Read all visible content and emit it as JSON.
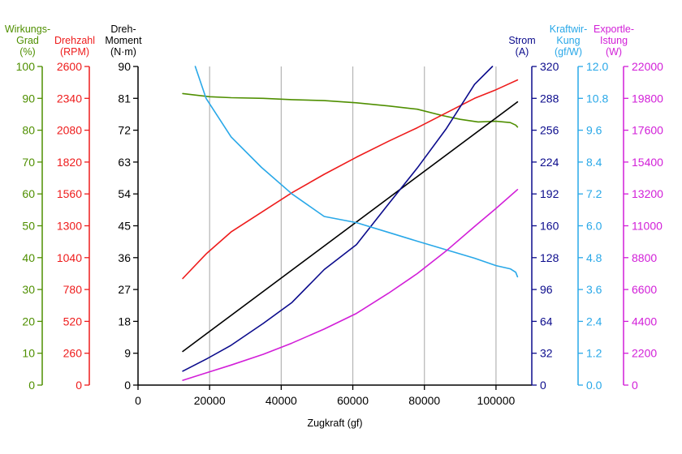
{
  "chart_data": {
    "type": "line",
    "title": "",
    "xlabel": "Zugkraft (gf)",
    "xlim": [
      0,
      110000
    ],
    "x_ticks": [
      "0",
      "20000",
      "40000",
      "60000",
      "80000",
      "100000"
    ],
    "grid": "vertical",
    "axes": [
      {
        "key": "eff",
        "side": "left",
        "title_lines": [
          "Wirkungs-",
          "Grad",
          "(%)"
        ],
        "color": "#4f8f00",
        "ylim": [
          0,
          100
        ],
        "ticks": [
          "0",
          "10",
          "20",
          "30",
          "40",
          "50",
          "60",
          "70",
          "80",
          "90",
          "100"
        ]
      },
      {
        "key": "rpm",
        "side": "left",
        "title_lines": [
          "Drehzahl",
          "(RPM)"
        ],
        "color": "#ee1c1c",
        "ylim": [
          0,
          2600
        ],
        "ticks": [
          "0",
          "260",
          "520",
          "780",
          "1040",
          "1300",
          "1560",
          "1820",
          "2080",
          "2340",
          "2600"
        ]
      },
      {
        "key": "torque",
        "side": "left",
        "title_lines": [
          "Dreh-",
          "Moment",
          "(N·m)"
        ],
        "color": "#000000",
        "ylim": [
          0,
          90
        ],
        "ticks": [
          "0",
          "9",
          "18",
          "27",
          "36",
          "45",
          "54",
          "63",
          "72",
          "81",
          "90"
        ]
      },
      {
        "key": "current",
        "side": "right",
        "title_lines": [
          "Strom",
          "(A)"
        ],
        "color": "#0b0b8c",
        "ylim": [
          0,
          320
        ],
        "ticks": [
          "0",
          "32",
          "64",
          "96",
          "128",
          "160",
          "192",
          "224",
          "256",
          "288",
          "320"
        ]
      },
      {
        "key": "kw",
        "side": "right",
        "title_lines": [
          "Kraftwir-",
          "Kung",
          "(gf/W)"
        ],
        "color": "#29a8e8",
        "ylim": [
          0,
          12
        ],
        "ticks": [
          "0.0",
          "1.2",
          "2.4",
          "3.6",
          "4.8",
          "6.0",
          "7.2",
          "8.4",
          "9.6",
          "10.8",
          "12.0"
        ]
      },
      {
        "key": "power",
        "side": "right",
        "title_lines": [
          "Exportle-",
          "Istung",
          "(W)"
        ],
        "color": "#d21fd8",
        "ylim": [
          0,
          22000
        ],
        "ticks": [
          "0",
          "2200",
          "4400",
          "6600",
          "8800",
          "11000",
          "13200",
          "15400",
          "17600",
          "19800",
          "22000"
        ]
      }
    ],
    "series": [
      {
        "axis": "eff",
        "color": "#4f8f00",
        "x": [
          12500,
          20000,
          26000,
          35000,
          43000,
          52000,
          61000,
          70000,
          78000,
          85000,
          90000,
          95000,
          100000,
          104000,
          105500,
          106000
        ],
        "y": [
          91.5,
          90.5,
          90.2,
          90.0,
          89.6,
          89.3,
          88.6,
          87.6,
          86.6,
          84.6,
          83.4,
          82.6,
          82.8,
          82.4,
          81.6,
          81.0
        ]
      },
      {
        "axis": "rpm",
        "color": "#ee1c1c",
        "x": [
          12500,
          19000,
          26000,
          35000,
          43000,
          52000,
          61000,
          70000,
          78000,
          86000,
          94000,
          100000,
          106000
        ],
        "y": [
          870,
          1070,
          1250,
          1420,
          1570,
          1720,
          1860,
          1990,
          2100,
          2220,
          2340,
          2410,
          2490
        ]
      },
      {
        "axis": "torque",
        "color": "#000000",
        "x": [
          12500,
          106000
        ],
        "y": [
          9.5,
          80.0
        ]
      },
      {
        "axis": "current",
        "color": "#0b0b8c",
        "x": [
          12500,
          19000,
          26000,
          35000,
          43000,
          52000,
          61000,
          70000,
          78000,
          86000,
          94000,
          99000
        ],
        "y": [
          14,
          26,
          40,
          62,
          83,
          116,
          141,
          182,
          218,
          257,
          302,
          320
        ]
      },
      {
        "axis": "kw",
        "color": "#29a8e8",
        "x": [
          16000,
          19000,
          26000,
          34500,
          43000,
          52000,
          61000,
          70000,
          78000,
          86000,
          94000,
          100000,
          104000,
          105500,
          106000
        ],
        "y": [
          12.0,
          10.8,
          9.35,
          8.2,
          7.2,
          6.35,
          6.12,
          5.75,
          5.42,
          5.1,
          4.78,
          4.5,
          4.38,
          4.25,
          4.08
        ]
      },
      {
        "axis": "power",
        "color": "#d21fd8",
        "x": [
          12500,
          19000,
          26000,
          35000,
          43000,
          52000,
          61000,
          70000,
          78000,
          86000,
          94000,
          100000,
          106000
        ],
        "y": [
          330,
          840,
          1380,
          2130,
          2900,
          3870,
          4950,
          6350,
          7700,
          9250,
          10950,
          12200,
          13500
        ]
      }
    ]
  }
}
